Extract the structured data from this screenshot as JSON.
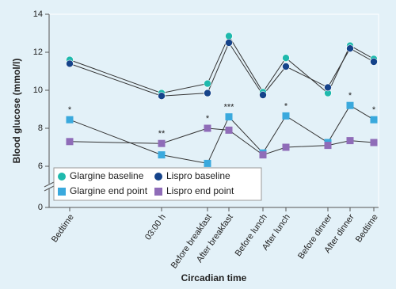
{
  "chart_data": {
    "type": "line",
    "ylabel": "Blood glucose (mmol/l)",
    "xlabel": "Circadian time",
    "categories": [
      "Bedtime",
      "03:00 h",
      "Before breakfast",
      "After breakfast",
      "Before lunch",
      "After lunch",
      "Before dinner",
      "After dinner",
      "Bedtime"
    ],
    "series": [
      {
        "name": "Glargine baseline",
        "color": "#1fb9ad",
        "marker": "circle",
        "values": [
          11.6,
          9.85,
          10.35,
          12.85,
          9.9,
          11.7,
          9.85,
          12.35,
          11.65
        ]
      },
      {
        "name": "Lispro baseline",
        "color": "#15438a",
        "marker": "circle",
        "values": [
          11.4,
          9.7,
          9.85,
          12.5,
          9.75,
          11.25,
          10.15,
          12.2,
          11.5
        ]
      },
      {
        "name": "Glargine end point",
        "color": "#3aa9dd",
        "marker": "square",
        "values": [
          8.45,
          6.6,
          6.15,
          8.6,
          6.7,
          8.65,
          7.25,
          9.2,
          8.45
        ]
      },
      {
        "name": "Lispro end point",
        "color": "#8f6cb8",
        "marker": "square",
        "values": [
          7.3,
          7.2,
          8.0,
          7.9,
          6.6,
          7.0,
          7.1,
          7.35,
          7.25
        ]
      }
    ],
    "significance": [
      "*",
      "**",
      "*",
      "***",
      null,
      "*",
      null,
      "*",
      "*"
    ],
    "ylim": [
      0,
      14
    ],
    "yticks": [
      0,
      6,
      8,
      10,
      12,
      14
    ],
    "y_axis_break": true,
    "legend": "lower-left"
  }
}
